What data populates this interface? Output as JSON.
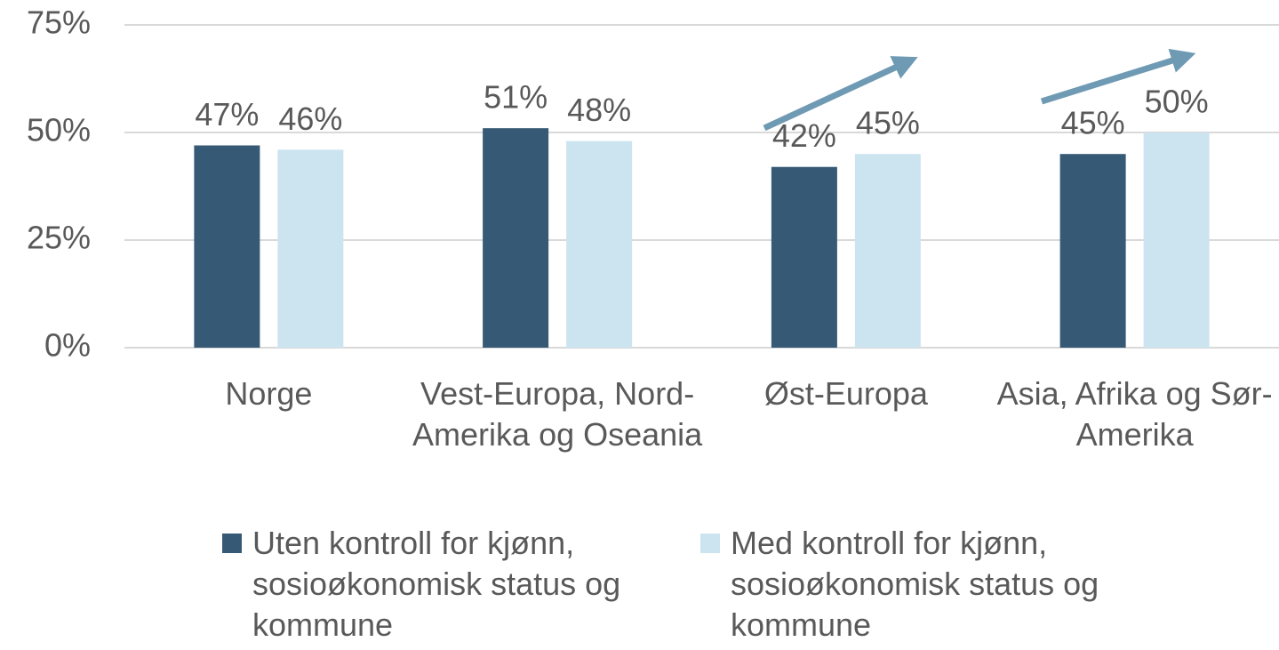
{
  "chart_data": {
    "type": "bar",
    "categories": [
      "Norge",
      "Vest-Europa, Nord-Amerika og Oseania",
      "Øst-Europa",
      "Asia, Afrika og Sør-Amerika"
    ],
    "series": [
      {
        "name": "Uten kontroll for kjønn, sosioøkonomisk status og kommune",
        "color": "#365a75",
        "values": [
          47,
          51,
          42,
          45
        ],
        "value_labels": [
          "47%",
          "51%",
          "42%",
          "45%"
        ]
      },
      {
        "name": "Med kontroll for kjønn, sosioøkonomisk status og kommune",
        "color": "#cce4f0",
        "values": [
          46,
          48,
          45,
          50
        ],
        "value_labels": [
          "46%",
          "48%",
          "45%",
          "50%"
        ]
      }
    ],
    "ylim": [
      0,
      75
    ],
    "yticks": [
      {
        "value": 0,
        "label": "0%"
      },
      {
        "value": 25,
        "label": "25%"
      },
      {
        "value": 50,
        "label": "50%"
      },
      {
        "value": 75,
        "label": "75%"
      }
    ],
    "grid": true
  }
}
